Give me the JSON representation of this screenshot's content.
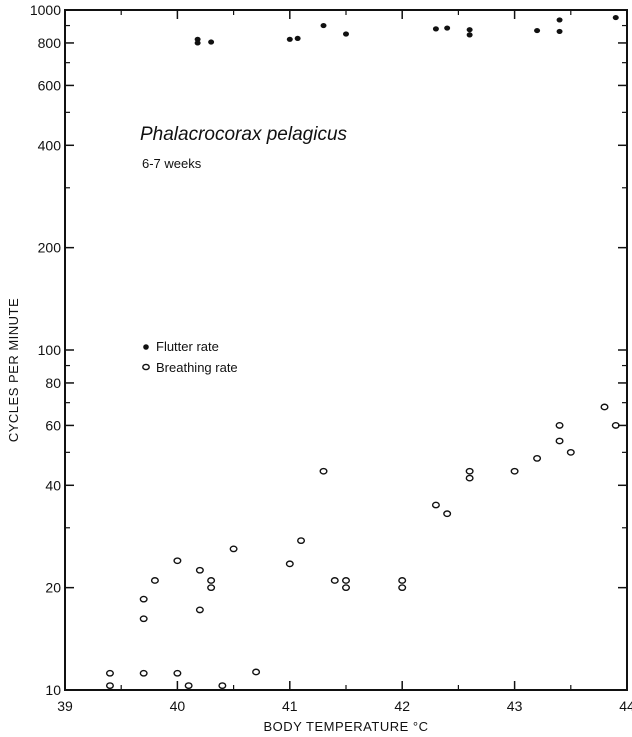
{
  "chart_data": {
    "type": "scatter",
    "title": "Phalacrocorax pelagicus",
    "subtitle": "6-7 weeks",
    "xlabel": "BODY TEMPERATURE  °C",
    "ylabel": "CYCLES PER MINUTE",
    "xlim": [
      39,
      44
    ],
    "ylim": [
      10,
      1000
    ],
    "y_scale": "log",
    "x_ticks": [
      39,
      40,
      41,
      42,
      43,
      44
    ],
    "x_tick_labels": [
      "39",
      "40",
      "41",
      "42",
      "43",
      "44"
    ],
    "y_ticks": [
      10,
      20,
      40,
      60,
      80,
      100,
      200,
      400,
      600,
      800,
      1000
    ],
    "y_tick_labels": [
      "10",
      "20",
      "40",
      "60",
      "80",
      "100",
      "200",
      "400",
      "600",
      "800",
      "1000"
    ],
    "legend_position": "left-middle",
    "series": [
      {
        "name": "Flutter rate",
        "marker": "filled",
        "points": [
          [
            40.18,
            820
          ],
          [
            40.18,
            800
          ],
          [
            40.3,
            805
          ],
          [
            41.0,
            820
          ],
          [
            41.07,
            825
          ],
          [
            41.3,
            900
          ],
          [
            41.5,
            850
          ],
          [
            42.3,
            880
          ],
          [
            42.4,
            885
          ],
          [
            42.6,
            875
          ],
          [
            42.6,
            845
          ],
          [
            43.2,
            870
          ],
          [
            43.4,
            935
          ],
          [
            43.4,
            865
          ],
          [
            43.9,
            950
          ]
        ]
      },
      {
        "name": "Breathing rate",
        "marker": "open",
        "points": [
          [
            39.4,
            11.2
          ],
          [
            39.4,
            10.3
          ],
          [
            39.7,
            11.2
          ],
          [
            39.7,
            18.5
          ],
          [
            39.7,
            16.2
          ],
          [
            39.8,
            21.0
          ],
          [
            40.0,
            11.2
          ],
          [
            40.0,
            24.0
          ],
          [
            40.1,
            10.3
          ],
          [
            40.2,
            22.5
          ],
          [
            40.2,
            17.2
          ],
          [
            40.3,
            21.0
          ],
          [
            40.3,
            20.0
          ],
          [
            40.4,
            10.3
          ],
          [
            40.5,
            26.0
          ],
          [
            40.7,
            11.3
          ],
          [
            41.0,
            23.5
          ],
          [
            41.1,
            27.5
          ],
          [
            41.3,
            44.0
          ],
          [
            41.4,
            21.0
          ],
          [
            41.5,
            21.0
          ],
          [
            41.5,
            20.0
          ],
          [
            42.0,
            21.0
          ],
          [
            42.0,
            20.0
          ],
          [
            42.3,
            35.0
          ],
          [
            42.4,
            33.0
          ],
          [
            42.6,
            44.0
          ],
          [
            42.6,
            42.0
          ],
          [
            43.0,
            44.0
          ],
          [
            43.2,
            48.0
          ],
          [
            43.4,
            60.0
          ],
          [
            43.4,
            54.0
          ],
          [
            43.5,
            50.0
          ],
          [
            43.8,
            68.0
          ],
          [
            43.9,
            60.0
          ]
        ]
      }
    ]
  }
}
